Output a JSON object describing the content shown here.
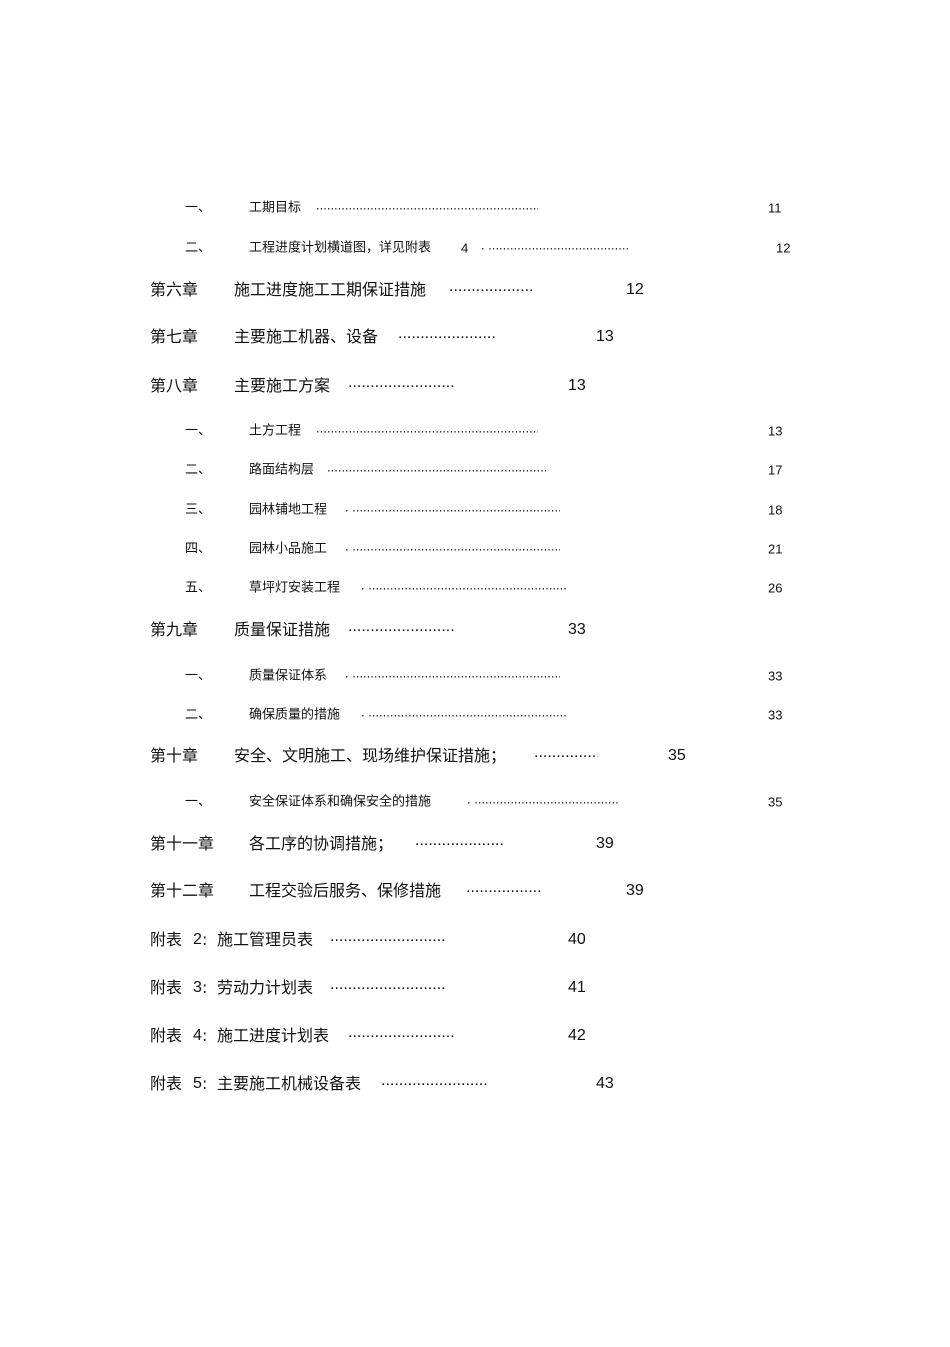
{
  "toc": [
    {
      "prefix": "一、",
      "title": "工期目标",
      "leader": "..........................................................................................",
      "page": "11"
    },
    {
      "prefix": "二、",
      "title": "工程进度计划横道图，详见附表",
      "title_num": "4",
      "leader": ". ..........................................................................",
      "page": "12"
    },
    {
      "prefix": "第六章",
      "title": "施工进度施工工期保证措施",
      "leader": "..........................................",
      "page": "12"
    },
    {
      "prefix": "第七章",
      "title": "主要施工机器、设备",
      "leader": "..........................................",
      "page": "13"
    },
    {
      "prefix": "第八章",
      "title": "主要施工方案",
      "leader": "..........................................",
      "page": "13"
    },
    {
      "prefix": "一、",
      "title": "土方工程",
      "leader": "..........................................................................................",
      "page": "13"
    },
    {
      "prefix": "二、",
      "title": "路面结构层",
      "leader": "..........................................................................................",
      "page": "17"
    },
    {
      "prefix": "三、",
      "title": "园林铺地工程",
      "leader": ". ..........................................................................................",
      "page": "18"
    },
    {
      "prefix": "四、",
      "title": "园林小品施工",
      "leader": ". ..........................................................................................",
      "page": "21"
    },
    {
      "prefix": "五、",
      "title": "草坪灯安装工程",
      "leader": ". ..........................................................................................",
      "page": "26"
    },
    {
      "prefix": "第九章",
      "title": "质量保证措施",
      "leader": "..........................................",
      "page": "33"
    },
    {
      "prefix": "一、",
      "title": "质量保证体系",
      "leader": ". ..........................................................................................",
      "page": "33"
    },
    {
      "prefix": "二、",
      "title": "确保质量的措施",
      "leader": ". ..........................................................................................",
      "page": "33"
    },
    {
      "prefix": "第十章",
      "title": "安全、文明施工、现场维护保证措施；",
      "leader": "..........................................",
      "page": "35"
    },
    {
      "prefix": "一、",
      "title": "安全保证体系和确保安全的措施",
      "leader": ". ..........................................................................................",
      "page": "35"
    },
    {
      "prefix": "第十一章",
      "title": "各工序的协调措施；",
      "leader": "..........................................",
      "page": "39"
    },
    {
      "prefix": "第十二章",
      "title": "工程交验后服务、保修措施",
      "leader": "..........................................",
      "page": "39"
    },
    {
      "prefix": "附表",
      "prefix_num": "2",
      "colon": ":",
      "title": "施工管理员表",
      "leader": "..........................................",
      "page": "40"
    },
    {
      "prefix": "附表",
      "prefix_num": "3",
      "colon": ":",
      "title": "劳动力计划表",
      "leader": "..........................................",
      "page": "41"
    },
    {
      "prefix": "附表",
      "prefix_num": "4",
      "colon": ":",
      "title": "施工进度计划表",
      "leader": "..........................................",
      "page": "42"
    },
    {
      "prefix": "附表",
      "prefix_num": "5",
      "colon": ":",
      "title": "主要施工机械设备表",
      "leader": "..........................................",
      "page": "43"
    }
  ]
}
